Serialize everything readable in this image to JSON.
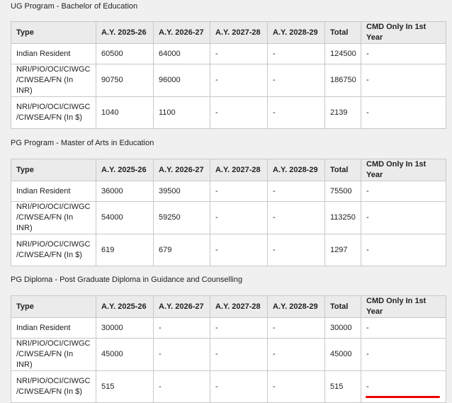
{
  "headers": [
    "Type",
    "A.Y. 2025-26",
    "A.Y. 2026-27",
    "A.Y. 2027-28",
    "A.Y. 2028-29",
    "Total",
    "CMD Only In 1st Year"
  ],
  "sections": [
    {
      "title": "UG Program - Bachelor of Education",
      "rows": [
        [
          "Indian Resident",
          "60500",
          "64000",
          "-",
          "-",
          "124500",
          "-"
        ],
        [
          "NRI/PIO/OCI/CIWGC /CIWSEA/FN (In INR)",
          "90750",
          "96000",
          "-",
          "-",
          "186750",
          "-"
        ],
        [
          "NRI/PIO/OCI/CIWGC /CIWSEA/FN (In $)",
          "1040",
          "1100",
          "-",
          "-",
          "2139",
          "-"
        ]
      ]
    },
    {
      "title": "PG Program - Master of Arts in Education",
      "rows": [
        [
          "Indian Resident",
          "36000",
          "39500",
          "-",
          "-",
          "75500",
          "-"
        ],
        [
          "NRI/PIO/OCI/CIWGC /CIWSEA/FN (In INR)",
          "54000",
          "59250",
          "-",
          "-",
          "113250",
          "-"
        ],
        [
          "NRI/PIO/OCI/CIWGC /CIWSEA/FN (In $)",
          "619",
          "679",
          "-",
          "-",
          "1297",
          "-"
        ]
      ]
    },
    {
      "title": "PG Diploma - Post Graduate Diploma in Guidance and Counselling",
      "rows": [
        [
          "Indian Resident",
          "30000",
          "-",
          "-",
          "-",
          "30000",
          "-"
        ],
        [
          "NRI/PIO/OCI/CIWGC /CIWSEA/FN (In INR)",
          "45000",
          "-",
          "-",
          "-",
          "45000",
          "-"
        ],
        [
          "NRI/PIO/OCI/CIWGC /CIWSEA/FN (In $)",
          "515",
          "-",
          "-",
          "-",
          "515",
          "-"
        ]
      ]
    }
  ],
  "colors": {
    "background": "#f0f0f0",
    "header": "#ebebeb",
    "border": "#c8c8c8",
    "accent": "#ee0000"
  }
}
